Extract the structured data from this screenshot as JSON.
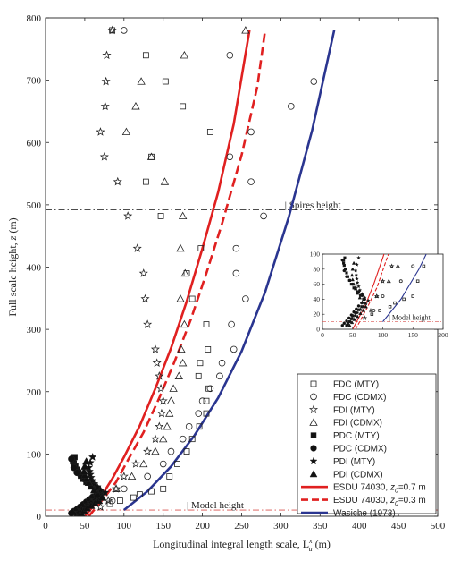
{
  "chart_data": {
    "type": "scatter",
    "xlabel": "Longitudinal integral length scale, L",
    "xlabel_super": "x",
    "xlabel_sub": "u",
    "xlabel_unit": " (m)",
    "ylabel_pre": "Full scale height, ",
    "ylabel_var": "z",
    "ylabel_unit": " (m)",
    "xlim": [
      0,
      500
    ],
    "ylim": [
      0,
      800
    ],
    "xticks": [
      0,
      50,
      100,
      150,
      200,
      250,
      300,
      350,
      400,
      450,
      500
    ],
    "yticks": [
      0,
      100,
      200,
      300,
      400,
      500,
      600,
      700,
      800
    ],
    "grid": false,
    "legend_position": "bottom-right",
    "reference_lines": [
      {
        "label": "Spires height",
        "y": 492,
        "color": "#333333",
        "style": "dash-dot"
      },
      {
        "label": "Model height",
        "y": 10,
        "color": "#d9534f",
        "style": "dash-dot"
      }
    ],
    "series": [
      {
        "name": "FDC (MTY)",
        "marker": "open-square",
        "x": [
          85,
          128,
          153,
          175,
          210,
          135,
          128,
          147,
          198,
          180,
          187,
          205,
          207,
          197,
          195,
          208,
          205,
          205,
          196,
          187,
          180,
          168,
          158,
          150,
          135,
          120,
          112,
          95,
          82
        ],
        "y": [
          780,
          740,
          698,
          658,
          617,
          577,
          537,
          482,
          430,
          390,
          349,
          308,
          268,
          246,
          225,
          205,
          185,
          165,
          144,
          124,
          104,
          84,
          64,
          44,
          40,
          35,
          30,
          25,
          20
        ]
      },
      {
        "name": "FDC (CDMX)",
        "marker": "open-circle",
        "x": [
          100,
          235,
          342,
          313,
          262,
          235,
          262,
          278,
          243,
          243,
          255,
          237,
          240,
          225,
          222,
          210,
          200,
          195,
          183,
          175,
          160,
          150,
          130,
          100,
          85
        ],
        "y": [
          780,
          740,
          698,
          658,
          617,
          577,
          537,
          482,
          430,
          390,
          349,
          308,
          268,
          246,
          225,
          205,
          185,
          165,
          144,
          124,
          104,
          84,
          64,
          44,
          25
        ]
      },
      {
        "name": "FDI (MTY)",
        "marker": "open-star",
        "x": [
          85,
          78,
          77,
          76,
          70,
          75,
          92,
          105,
          117,
          125,
          127,
          130,
          140,
          142,
          145,
          147,
          150,
          148,
          145,
          140,
          130,
          115,
          100,
          90,
          80,
          70
        ],
        "y": [
          780,
          740,
          698,
          658,
          617,
          577,
          537,
          482,
          430,
          390,
          349,
          308,
          268,
          246,
          225,
          205,
          185,
          165,
          144,
          124,
          104,
          84,
          64,
          44,
          25,
          15
        ]
      },
      {
        "name": "FDI (CDMX)",
        "marker": "open-triangle",
        "x": [
          255,
          177,
          122,
          115,
          103,
          135,
          152,
          175,
          172,
          178,
          172,
          177,
          173,
          175,
          170,
          163,
          160,
          158,
          155,
          150,
          140,
          125,
          110,
          90
        ],
        "y": [
          780,
          740,
          698,
          658,
          617,
          577,
          537,
          482,
          430,
          390,
          349,
          308,
          268,
          246,
          225,
          205,
          185,
          165,
          144,
          124,
          104,
          84,
          64,
          44
        ]
      },
      {
        "name": "PDC (MTY)",
        "marker": "filled-square",
        "x": [
          40,
          42,
          45,
          48,
          50,
          55,
          60,
          65,
          70,
          68,
          63,
          58,
          52,
          48,
          45,
          42,
          40,
          38,
          36,
          35,
          35,
          37
        ],
        "y": [
          5,
          8,
          10,
          14,
          18,
          22,
          26,
          30,
          35,
          40,
          45,
          50,
          55,
          60,
          65,
          70,
          75,
          80,
          85,
          88,
          92,
          95
        ]
      },
      {
        "name": "PDC (CDMX)",
        "marker": "filled-circle",
        "x": [
          33,
          36,
          40,
          44,
          48,
          52,
          56,
          60,
          65,
          70,
          66,
          60,
          55,
          50,
          45,
          40,
          36,
          33
        ],
        "y": [
          5,
          8,
          11,
          15,
          19,
          23,
          27,
          31,
          35,
          40,
          45,
          50,
          55,
          60,
          65,
          70,
          78,
          92
        ]
      },
      {
        "name": "PDI (MTY)",
        "marker": "filled-star",
        "x": [
          42,
          46,
          50,
          54,
          58,
          63,
          68,
          72,
          76,
          70,
          66,
          62,
          60,
          58,
          57,
          56,
          55,
          57,
          60
        ],
        "y": [
          6,
          10,
          14,
          18,
          22,
          26,
          30,
          34,
          38,
          42,
          47,
          52,
          57,
          62,
          67,
          72,
          78,
          86,
          95
        ]
      },
      {
        "name": "PDI (CDMX)",
        "marker": "filled-triangle",
        "x": [
          45,
          49,
          53,
          58,
          63,
          68,
          72,
          66,
          62,
          58,
          55,
          52,
          50,
          49,
          50,
          52
        ],
        "y": [
          5,
          9,
          13,
          17,
          21,
          25,
          30,
          36,
          42,
          48,
          54,
          60,
          66,
          72,
          80,
          88
        ]
      },
      {
        "name": "ESDU 74030, ",
        "name_var": "z",
        "name_sub": "0",
        "name_tail": "=0.7 m",
        "type": "line",
        "color": "#e02020",
        "style": "solid",
        "x": [
          50,
          60,
          70,
          85,
          100,
          120,
          140,
          160,
          180,
          200,
          220,
          240,
          260
        ],
        "y": [
          0,
          15,
          30,
          60,
          95,
          145,
          205,
          270,
          345,
          430,
          520,
          630,
          780
        ]
      },
      {
        "name": "ESDU 74030, ",
        "name_var": "z",
        "name_sub": "0",
        "name_tail": "=0.3 m",
        "type": "line",
        "color": "#e02020",
        "style": "dashed",
        "x": [
          55,
          65,
          75,
          90,
          105,
          125,
          145,
          165,
          185,
          205,
          225,
          250,
          270,
          280
        ],
        "y": [
          0,
          15,
          30,
          55,
          90,
          135,
          190,
          250,
          315,
          390,
          470,
          580,
          690,
          780
        ]
      },
      {
        "name": "Wasiche (1973)",
        "type": "line",
        "color": "#2a3590",
        "style": "solid",
        "x": [
          100,
          130,
          160,
          190,
          220,
          250,
          280,
          310,
          340,
          368
        ],
        "y": [
          10,
          40,
          80,
          130,
          190,
          265,
          360,
          480,
          620,
          780
        ]
      }
    ],
    "inset": {
      "xlim": [
        0,
        200
      ],
      "ylim": [
        0,
        100
      ],
      "xticks": [
        0,
        50,
        100,
        150,
        200
      ],
      "yticks": [
        0,
        20,
        40,
        60,
        80,
        100
      ],
      "annotation": "Model height",
      "annotation_y": 10
    }
  }
}
